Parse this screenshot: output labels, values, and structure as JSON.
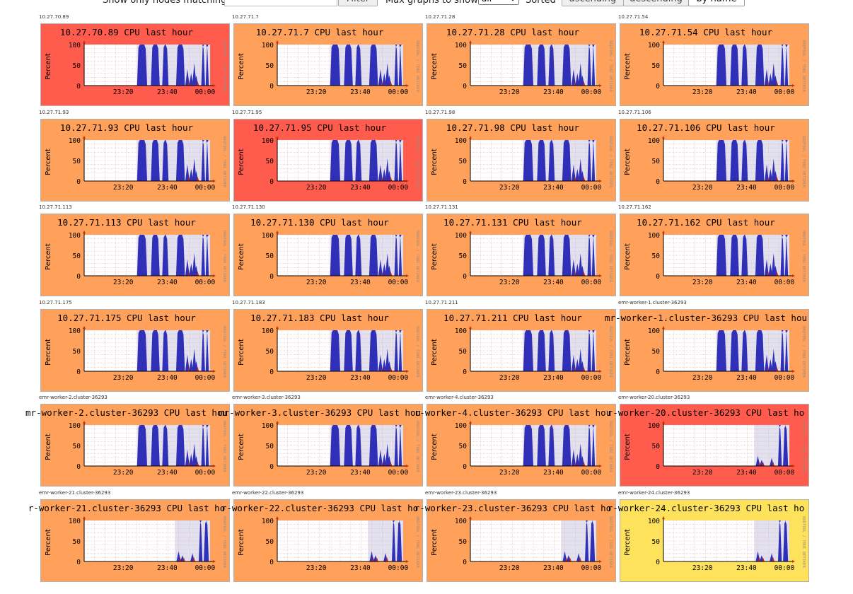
{
  "filter_bar": {
    "filter_label": "Show only nodes matching",
    "filter_value": "",
    "filter_button": "Filter",
    "max_label": "Max graphs to show",
    "max_value": "all",
    "sorted_label": "Sorted",
    "sort_options": [
      "ascending",
      "descending",
      "by name"
    ],
    "sort_active": "by name"
  },
  "colors": {
    "load_normal": "#ffa15a",
    "load_high": "#ff5c4d",
    "load_low": "#ffe25c",
    "cpu_fill": "#2f2fb8",
    "plot_bg": "#e1e1f0",
    "axis": "#cc3300"
  },
  "chart_common": {
    "ylabel": "Percent",
    "yticks": [
      "100",
      "50",
      "0"
    ],
    "xticks": [
      "23:20",
      "23:40",
      "00:00"
    ],
    "watermark": "RRDTOOL / TOBI OETIKER"
  },
  "nodes": [
    {
      "host": "10.27.70.89",
      "title": "10.27.70.89 CPU last hour",
      "load": "high",
      "profile": "full"
    },
    {
      "host": "10.27.71.7",
      "title": "10.27.71.7 CPU last hour",
      "load": "normal",
      "profile": "full"
    },
    {
      "host": "10.27.71.28",
      "title": "10.27.71.28 CPU last hour",
      "load": "normal",
      "profile": "full"
    },
    {
      "host": "10.27.71.54",
      "title": "10.27.71.54 CPU last hour",
      "load": "normal",
      "profile": "full"
    },
    {
      "host": "10.27.71.93",
      "title": "10.27.71.93 CPU last hour",
      "load": "normal",
      "profile": "full"
    },
    {
      "host": "10.27.71.95",
      "title": "10.27.71.95 CPU last hour",
      "load": "high",
      "profile": "full"
    },
    {
      "host": "10.27.71.98",
      "title": "10.27.71.98 CPU last hour",
      "load": "normal",
      "profile": "full"
    },
    {
      "host": "10.27.71.106",
      "title": "10.27.71.106 CPU last hour",
      "load": "normal",
      "profile": "full"
    },
    {
      "host": "10.27.71.113",
      "title": "10.27.71.113 CPU last hour",
      "load": "normal",
      "profile": "full"
    },
    {
      "host": "10.27.71.130",
      "title": "10.27.71.130 CPU last hour",
      "load": "normal",
      "profile": "full"
    },
    {
      "host": "10.27.71.131",
      "title": "10.27.71.131 CPU last hour",
      "load": "normal",
      "profile": "full"
    },
    {
      "host": "10.27.71.162",
      "title": "10.27.71.162 CPU last hour",
      "load": "normal",
      "profile": "full"
    },
    {
      "host": "10.27.71.175",
      "title": "10.27.71.175 CPU last hour",
      "load": "normal",
      "profile": "full"
    },
    {
      "host": "10.27.71.183",
      "title": "10.27.71.183 CPU last hour",
      "load": "normal",
      "profile": "full"
    },
    {
      "host": "10.27.71.211",
      "title": "10.27.71.211 CPU last hour",
      "load": "normal",
      "profile": "full"
    },
    {
      "host": "emr-worker-1.cluster-36293",
      "title": "mr-worker-1.cluster-36293 CPU last hou",
      "load": "normal",
      "profile": "full"
    },
    {
      "host": "emr-worker-2.cluster-36293",
      "title": "mr-worker-2.cluster-36293 CPU last hou",
      "load": "normal",
      "profile": "full"
    },
    {
      "host": "emr-worker-3.cluster-36293",
      "title": "mr-worker-3.cluster-36293 CPU last hou",
      "load": "normal",
      "profile": "full"
    },
    {
      "host": "emr-worker-4.cluster-36293",
      "title": "r-worker-4.cluster-36293 CPU last hou",
      "load": "normal",
      "profile": "full"
    },
    {
      "host": "emr-worker-20.cluster-36293",
      "title": "r-worker-20.cluster-36293 CPU last ho",
      "load": "high",
      "profile": "late"
    },
    {
      "host": "emr-worker-21.cluster-36293",
      "title": "r-worker-21.cluster-36293 CPU last ho",
      "load": "normal",
      "profile": "late"
    },
    {
      "host": "emr-worker-22.cluster-36293",
      "title": "r-worker-22.cluster-36293 CPU last ho",
      "load": "normal",
      "profile": "late"
    },
    {
      "host": "emr-worker-23.cluster-36293",
      "title": "r-worker-23.cluster-36293 CPU last ho",
      "load": "normal",
      "profile": "late"
    },
    {
      "host": "emr-worker-24.cluster-36293",
      "title": "r-worker-24.cluster-36293 CPU last ho",
      "load": "low",
      "profile": "late"
    }
  ],
  "profiles": {
    "full": {
      "shade_from": 0.42,
      "peaks": [
        [
          0.42,
          0.5,
          100
        ],
        [
          0.53,
          0.6,
          100
        ],
        [
          0.62,
          0.67,
          100
        ],
        [
          0.73,
          0.8,
          100
        ],
        [
          0.93,
          0.96,
          100
        ],
        [
          0.965,
          0.99,
          100
        ]
      ],
      "blips": [
        [
          0.82,
          40
        ],
        [
          0.85,
          30
        ],
        [
          0.875,
          55
        ],
        [
          0.89,
          25
        ]
      ]
    },
    "late": {
      "shade_from": 0.72,
      "peaks": [
        [
          0.91,
          0.94,
          100
        ],
        [
          0.95,
          0.99,
          100
        ]
      ],
      "blips": [
        [
          0.75,
          25
        ],
        [
          0.78,
          15
        ],
        [
          0.86,
          20
        ]
      ]
    }
  }
}
